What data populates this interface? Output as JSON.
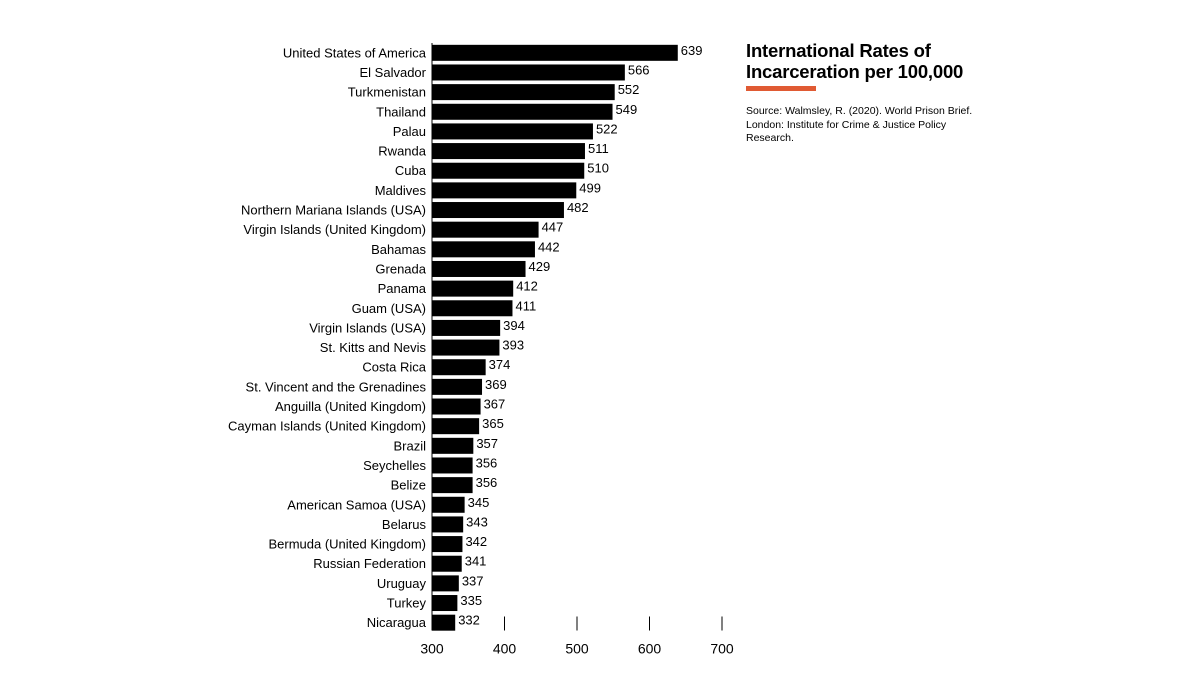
{
  "chart_data": {
    "type": "bar",
    "orientation": "horizontal",
    "title": "International Rates of Incarceration per 100,000",
    "source": "Source: Walmsley, R. (2020). World Prison Brief. London: Institute for Crime & Justice Policy Research.",
    "xlim": [
      300,
      700
    ],
    "x_ticks": [
      300,
      400,
      500,
      600,
      700
    ],
    "grid": false,
    "categories": [
      "United States of America",
      "El Salvador",
      "Turkmenistan",
      "Thailand",
      "Palau",
      "Rwanda",
      "Cuba",
      "Maldives",
      "Northern Mariana Islands (USA)",
      "Virgin Islands (United Kingdom)",
      "Bahamas",
      "Grenada",
      "Panama",
      "Guam (USA)",
      "Virgin Islands (USA)",
      "St. Kitts and Nevis",
      "Costa Rica",
      "St. Vincent and the Grenadines",
      "Anguilla (United Kingdom)",
      "Cayman Islands (United Kingdom)",
      "Brazil",
      "Seychelles",
      "Belize",
      "American Samoa (USA)",
      "Belarus",
      "Bermuda (United Kingdom)",
      "Russian Federation",
      "Uruguay",
      "Turkey",
      "Nicaragua"
    ],
    "values": [
      639,
      566,
      552,
      549,
      522,
      511,
      510,
      499,
      482,
      447,
      442,
      429,
      412,
      411,
      394,
      393,
      374,
      369,
      367,
      365,
      357,
      356,
      356,
      345,
      343,
      342,
      341,
      337,
      335,
      332
    ]
  },
  "colors": {
    "bar": "#000000",
    "accent": "#e05a33",
    "axis": "#000000"
  }
}
